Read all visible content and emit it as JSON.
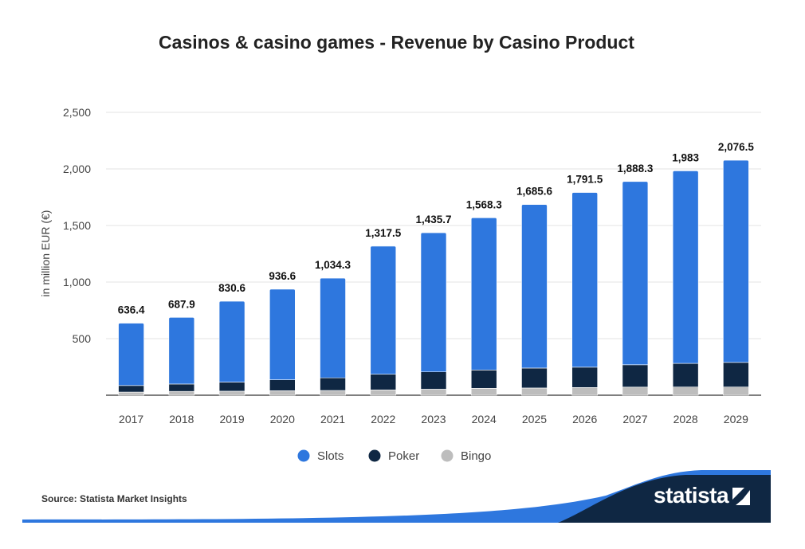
{
  "chart_data": {
    "type": "bar",
    "stacked": true,
    "title": "Casinos & casino games - Revenue by Casino Product",
    "ylabel": "in million EUR (€)",
    "xlabel": "",
    "ylim": [
      0,
      2500
    ],
    "yticks": [
      500,
      1000,
      1500,
      2000,
      2500
    ],
    "ytick_labels": [
      "500",
      "1,000",
      "1,500",
      "2,000",
      "2,500"
    ],
    "grid": true,
    "legend": "bottom-center",
    "categories": [
      "2017",
      "2018",
      "2019",
      "2020",
      "2021",
      "2022",
      "2023",
      "2024",
      "2025",
      "2026",
      "2027",
      "2028",
      "2029"
    ],
    "series": [
      {
        "name": "Slots",
        "color": "#2e77de",
        "values": [
          550.4,
          588.9,
          714.6,
          800.6,
          880.3,
          1132.5,
          1229.7,
          1345.3,
          1445.6,
          1543.5,
          1619.3,
          1702,
          1786.5
        ]
      },
      {
        "name": "Poker",
        "color": "#0f2743",
        "values": [
          58,
          65,
          80,
          96,
          112,
          138,
          153,
          162,
          176,
          180,
          197,
          208,
          217
        ]
      },
      {
        "name": "Bingo",
        "color": "#bdbdbd",
        "values": [
          28,
          34,
          36,
          40,
          42,
          47,
          53,
          61,
          64,
          68,
          72,
          73,
          73
        ]
      }
    ],
    "totals": [
      636.4,
      687.9,
      830.6,
      936.6,
      1034.3,
      1317.5,
      1435.7,
      1568.3,
      1685.6,
      1791.5,
      1888.3,
      1983,
      2076.5
    ],
    "total_labels": [
      "636.4",
      "687.9",
      "830.6",
      "936.6",
      "1,034.3",
      "1,317.5",
      "1,435.7",
      "1,568.3",
      "1,685.6",
      "1,791.5",
      "1,888.3",
      "1,983",
      "2,076.5"
    ]
  },
  "footer": {
    "source": "Source: Statista Market Insights",
    "brand": "statista"
  },
  "colors": {
    "brand_dark": "#0f2743",
    "accent_blue": "#2e77de"
  }
}
